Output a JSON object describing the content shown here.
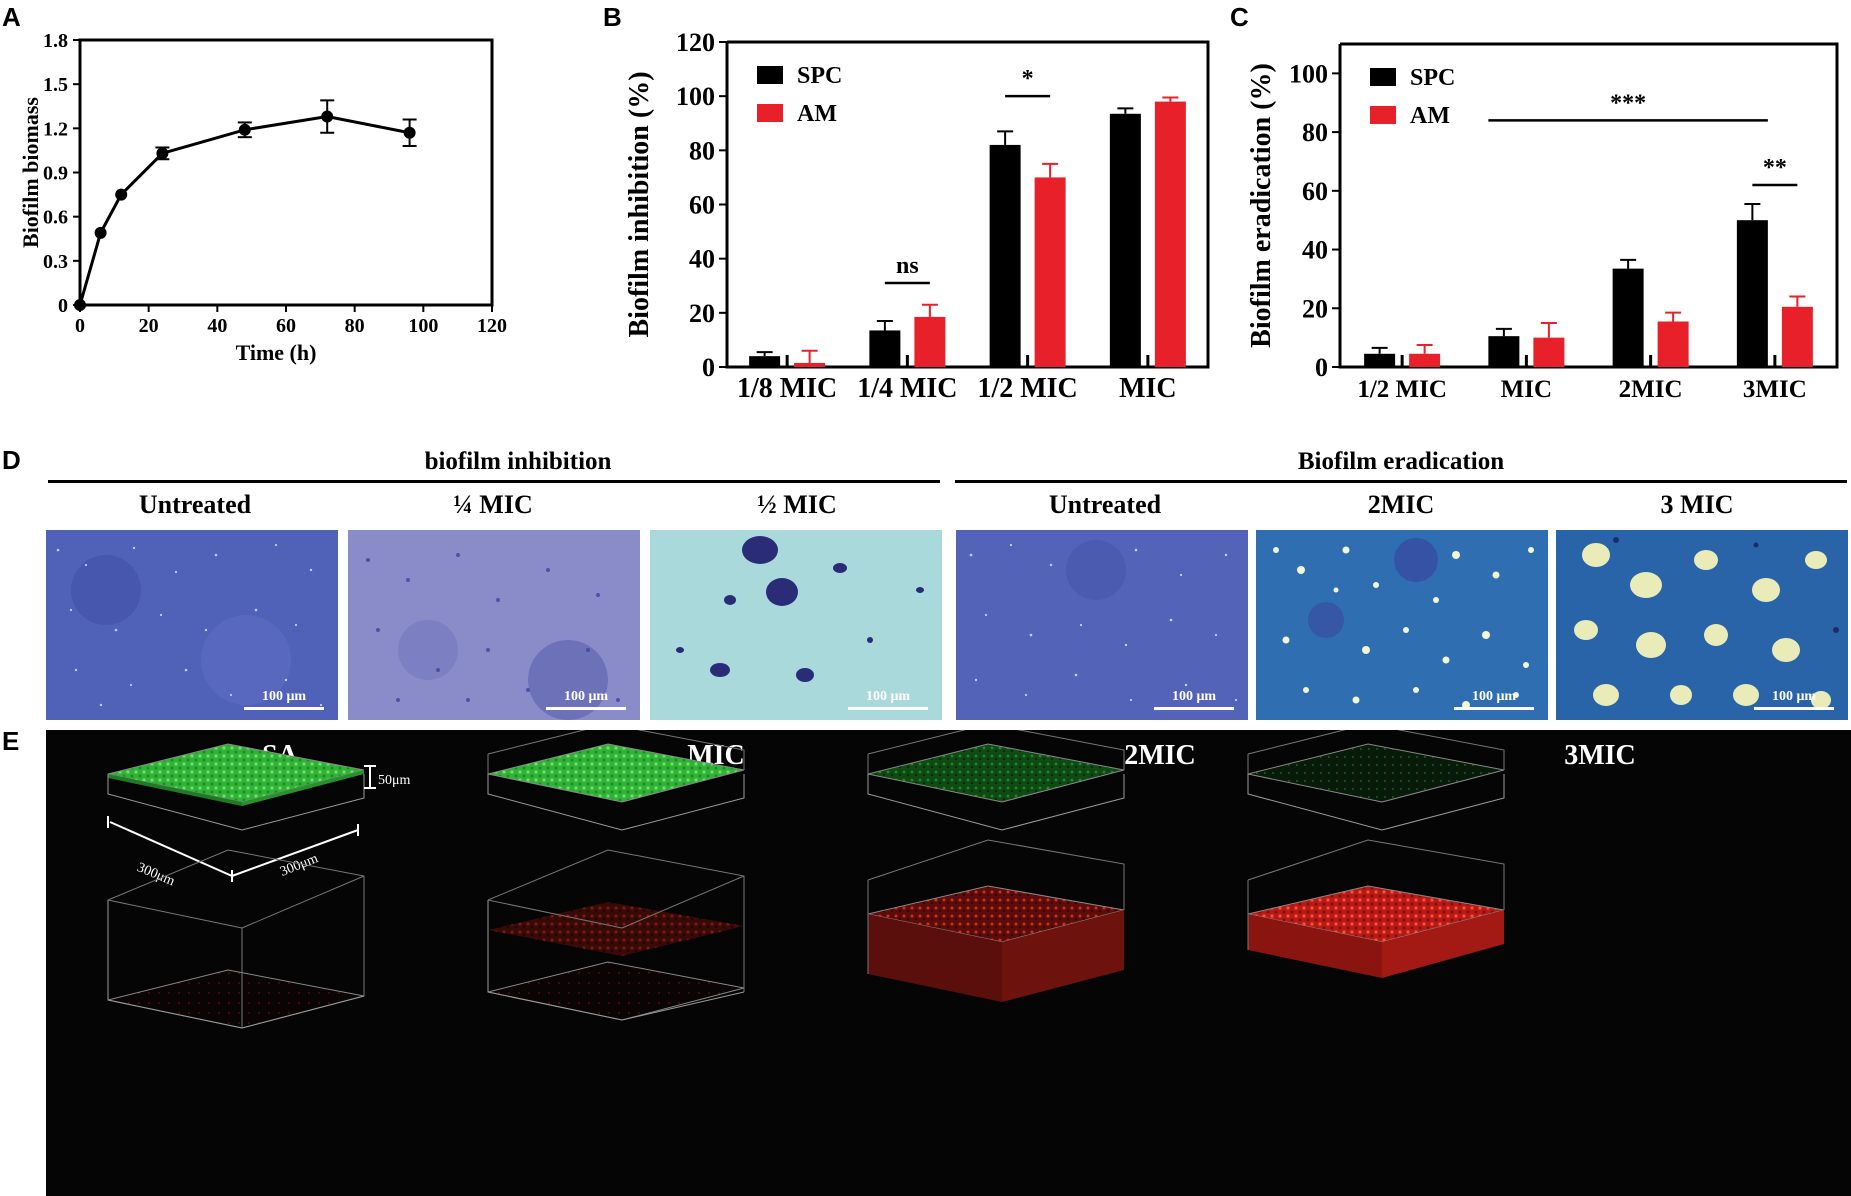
{
  "panel_labels": {
    "a": "A",
    "b": "B",
    "c": "C",
    "d": "D",
    "e": "E"
  },
  "chart_data": [
    {
      "panel": "A",
      "type": "line",
      "title": "",
      "xlabel": "Time (h)",
      "ylabel": "Biofilm biomass",
      "xlim": [
        0,
        120
      ],
      "ylim": [
        0,
        1.8
      ],
      "xticks": [
        0,
        20,
        40,
        60,
        80,
        100,
        120
      ],
      "yticks": [
        0,
        0.3,
        0.6,
        0.9,
        1.2,
        1.5,
        1.8
      ],
      "ytick_labels": [
        "0",
        "0.3",
        "0.6",
        "0.9",
        "1.2",
        "1.5",
        "1.8"
      ],
      "x": [
        0,
        6,
        12,
        24,
        48,
        72,
        96
      ],
      "y": [
        0.0,
        0.49,
        0.75,
        1.03,
        1.19,
        1.28,
        1.17
      ],
      "err": [
        0,
        0,
        0,
        0.04,
        0.05,
        0.11,
        0.09
      ],
      "color": "#000000",
      "grid": false
    },
    {
      "panel": "B",
      "type": "bar",
      "ylabel": "Biofilm inhibition (%)",
      "ylim": [
        0,
        120
      ],
      "yticks": [
        0,
        20,
        40,
        60,
        80,
        100,
        120
      ],
      "categories": [
        "1/8  MIC",
        "1/4  MIC",
        "1/2  MIC",
        "MIC"
      ],
      "series": [
        {
          "name": "SPC",
          "color": "#000000",
          "values": [
            4,
            13.5,
            82,
            93.5
          ],
          "err": [
            1.5,
            3.5,
            5,
            2
          ]
        },
        {
          "name": "AM",
          "color": "#e8202a",
          "values": [
            1.5,
            18.5,
            70,
            98
          ],
          "err": [
            4.5,
            4.5,
            5,
            1.5
          ]
        }
      ],
      "legend": "top-left",
      "annotations": [
        {
          "text": "ns",
          "category_index": 1,
          "y": 31
        },
        {
          "text": "*",
          "category_index": 2,
          "y": 100
        }
      ]
    },
    {
      "panel": "C",
      "type": "bar",
      "ylabel": "Biofilm eradication (%)",
      "ylim": [
        0,
        110
      ],
      "yticks": [
        0,
        20,
        40,
        60,
        80,
        100
      ],
      "categories": [
        "1/2  MIC",
        "MIC",
        "2MIC",
        "3MIC"
      ],
      "series": [
        {
          "name": "SPC",
          "color": "#000000",
          "values": [
            4.5,
            10.5,
            33.5,
            50
          ],
          "err": [
            2,
            2.5,
            3,
            5.5
          ]
        },
        {
          "name": "AM",
          "color": "#e8202a",
          "values": [
            4.5,
            10,
            15.5,
            20.5
          ],
          "err": [
            3,
            5,
            3,
            3.5
          ]
        }
      ],
      "legend": "top-left",
      "annotations": [
        {
          "text": "***",
          "from_category": 1,
          "to_category": 3,
          "y": 84
        },
        {
          "text": "**",
          "category_index": 3,
          "y": 62
        }
      ]
    }
  ],
  "panel_d": {
    "groups": [
      {
        "title": "biofilm inhibition",
        "columns": [
          "Untreated",
          "¼ MIC",
          "½ MIC"
        ]
      },
      {
        "title": "Biofilm eradication",
        "columns": [
          "Untreated",
          "2MIC",
          "3 MIC"
        ]
      }
    ],
    "scale_bar": "100 μm"
  },
  "panel_e": {
    "columns": [
      "SA",
      "MIC",
      "2MIC",
      "3MIC"
    ],
    "dim_height": "50μm",
    "dim_width": "300μm",
    "dim_depth": "300μm",
    "green": "#35c83b",
    "red": "#e1261c"
  }
}
